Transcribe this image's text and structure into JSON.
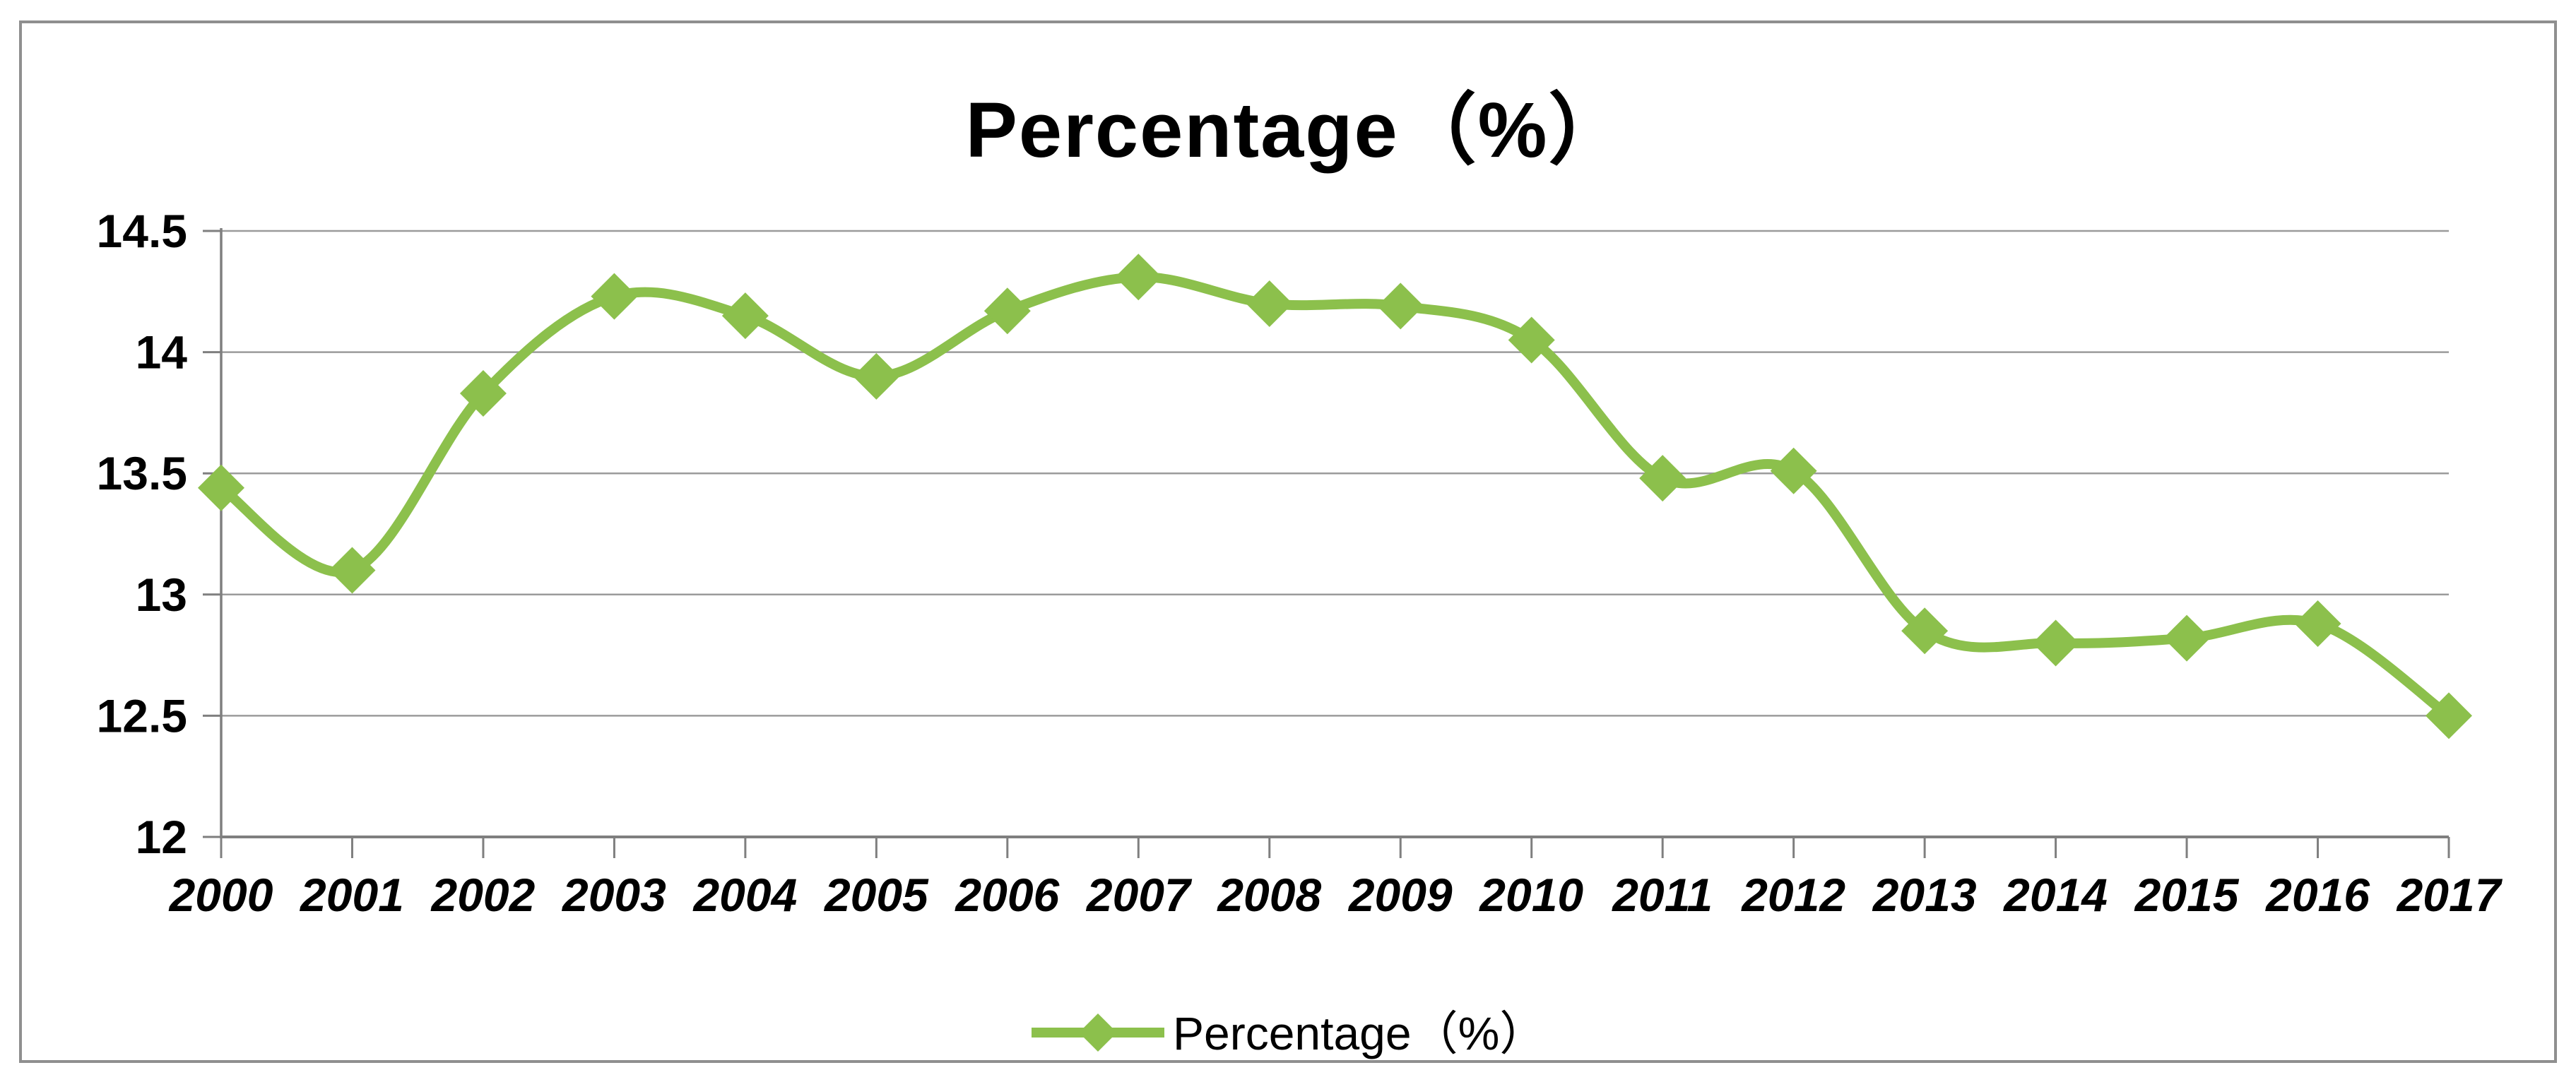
{
  "chart_data": {
    "type": "line",
    "title": "Percentage（%）",
    "categories": [
      "2000",
      "2001",
      "2002",
      "2003",
      "2004",
      "2005",
      "2006",
      "2007",
      "2008",
      "2009",
      "2010",
      "2011",
      "2012",
      "2013",
      "2014",
      "2015",
      "2016",
      "2017"
    ],
    "series": [
      {
        "name": "Percentage（%）",
        "values": [
          13.44,
          13.1,
          13.83,
          14.23,
          14.15,
          13.9,
          14.17,
          14.31,
          14.2,
          14.19,
          14.05,
          13.48,
          13.51,
          12.85,
          12.8,
          12.82,
          12.88,
          12.5
        ],
        "color": "#8CC04C",
        "marker": "diamond",
        "smooth": true
      }
    ],
    "xlabel": "",
    "ylabel": "",
    "ylim": [
      12,
      14.5
    ],
    "y_tick_values": [
      14.5,
      14,
      13.5,
      13,
      12.5,
      12
    ],
    "y_tick_labels": [
      "14.5",
      "14",
      "13.5",
      "13",
      "12.5",
      "12"
    ],
    "grid": true,
    "legend_position": "bottom"
  },
  "style": {
    "frame_border_color": "#8f8f8f",
    "background": "#ffffff",
    "gridline_color": "#9b9b9b",
    "axis_color": "#7f7f7f",
    "text_color": "#000000"
  }
}
